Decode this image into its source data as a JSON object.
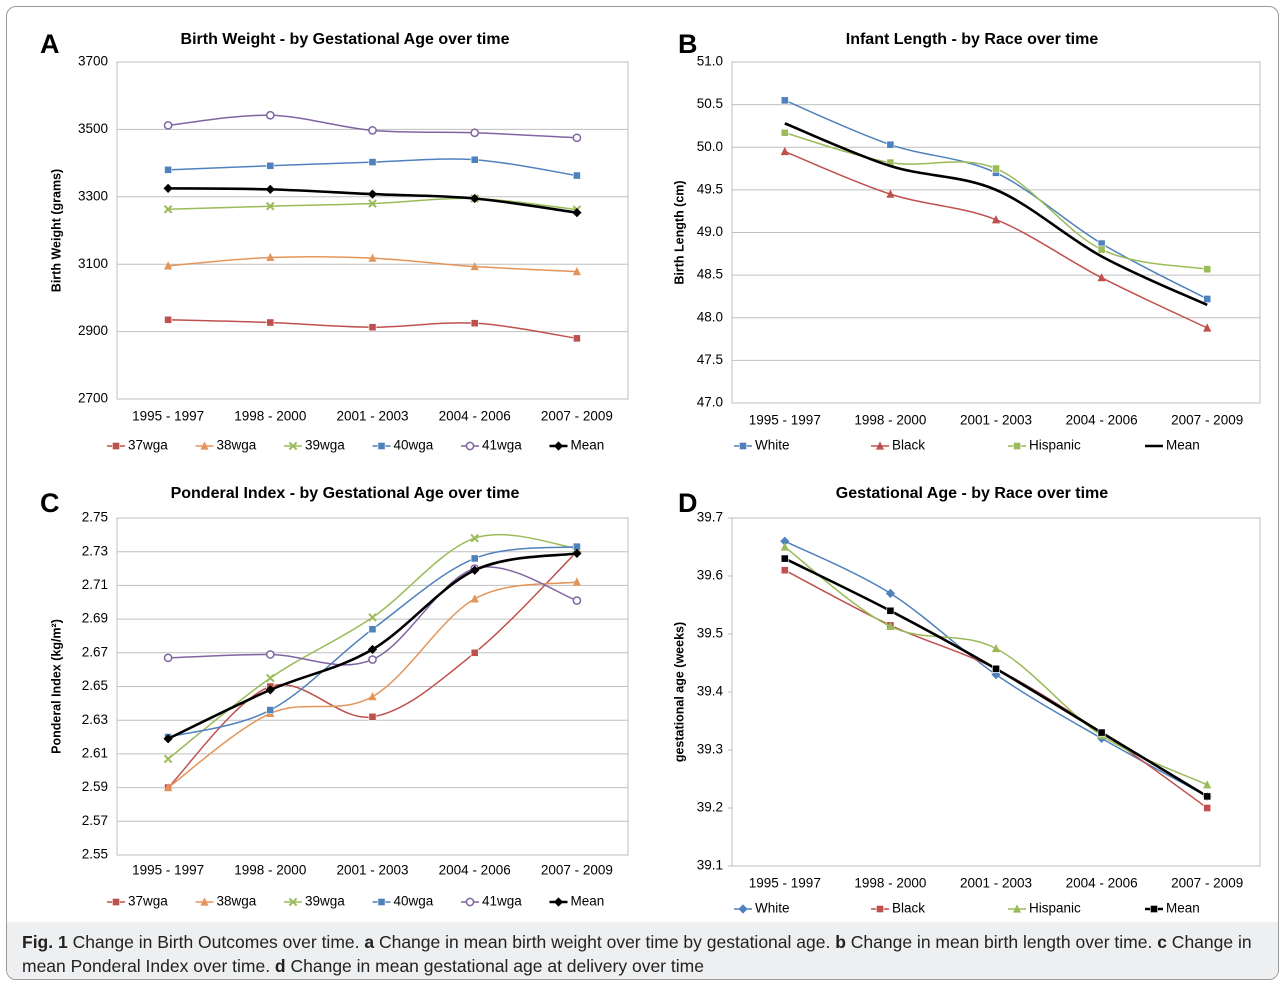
{
  "chart_data": [
    {
      "type": "line",
      "panel": "A",
      "title": "Birth Weight - by Gestational Age over time",
      "y_label": "Birth Weight (grams)",
      "categories": [
        "1995 - 1997",
        "1998 - 2000",
        "2001 - 2003",
        "2004 - 2006",
        "2007 - 2009"
      ],
      "ylim": [
        2700,
        3700
      ],
      "yticks": [
        2700,
        2900,
        3100,
        3300,
        3500,
        3700
      ],
      "grid": true,
      "smooth": true,
      "series": [
        {
          "name": "37wga",
          "color": "#c0504d",
          "marker": "square",
          "values": [
            2935,
            2927,
            2913,
            2925,
            2880
          ]
        },
        {
          "name": "38wga",
          "color": "#e3955a",
          "marker": "triangle",
          "values": [
            3095,
            3120,
            3118,
            3093,
            3078
          ]
        },
        {
          "name": "39wga",
          "color": "#9bbb59",
          "marker": "x",
          "values": [
            3263,
            3272,
            3280,
            3295,
            3262
          ]
        },
        {
          "name": "40wga",
          "color": "#4f81bd",
          "marker": "square",
          "values": [
            3380,
            3392,
            3403,
            3410,
            3363
          ]
        },
        {
          "name": "41wga",
          "color": "#8064a2",
          "marker": "circle",
          "values": [
            3512,
            3542,
            3497,
            3490,
            3475
          ]
        },
        {
          "name": "Mean",
          "color": "#000000",
          "marker": "diamond",
          "values": [
            3325,
            3322,
            3308,
            3295,
            3253
          ]
        }
      ]
    },
    {
      "type": "line",
      "panel": "B",
      "title": "Infant Length - by Race over time",
      "y_label": "Birth Length (cm)",
      "categories": [
        "1995 - 1997",
        "1998 - 2000",
        "2001 - 2003",
        "2004 - 2006",
        "2007 - 2009"
      ],
      "ylim": [
        47,
        51
      ],
      "yticks": [
        {
          "value": 47,
          "label": "47.0"
        },
        47.5,
        {
          "value": 48,
          "label": "48.0"
        },
        48.5,
        {
          "value": 49,
          "label": "49.0"
        },
        49.5,
        {
          "value": 50,
          "label": "50.0"
        },
        50.5,
        {
          "value": 51,
          "label": "51.0"
        }
      ],
      "grid": true,
      "smooth": true,
      "series": [
        {
          "name": "White",
          "color": "#4f81bd",
          "marker": "square",
          "values": [
            50.55,
            50.03,
            49.7,
            48.87,
            48.22
          ]
        },
        {
          "name": "Black",
          "color": "#c0504d",
          "marker": "triangle",
          "values": [
            49.95,
            49.45,
            49.15,
            48.47,
            47.88
          ]
        },
        {
          "name": "Hispanic",
          "color": "#9bbb59",
          "marker": "square",
          "values": [
            50.17,
            49.82,
            49.75,
            48.8,
            48.57
          ]
        },
        {
          "name": "Mean",
          "color": "#000000",
          "marker": "none",
          "values": [
            50.28,
            49.78,
            49.5,
            48.72,
            48.15
          ]
        }
      ]
    },
    {
      "type": "line",
      "panel": "C",
      "title": "Ponderal Index - by Gestational Age over time",
      "y_label": "Ponderal Index (kg/m²)",
      "categories": [
        "1995 - 1997",
        "1998 - 2000",
        "2001 - 2003",
        "2004 - 2006",
        "2007 - 2009"
      ],
      "ylim": [
        2.55,
        2.75
      ],
      "yticks": [
        2.55,
        2.57,
        2.59,
        2.61,
        2.63,
        2.65,
        2.67,
        2.69,
        2.71,
        2.73,
        2.75
      ],
      "grid": true,
      "smooth": true,
      "series": [
        {
          "name": "37wga",
          "color": "#c0504d",
          "marker": "square",
          "values": [
            2.59,
            2.65,
            2.632,
            2.67,
            2.73
          ]
        },
        {
          "name": "38wga",
          "color": "#e3955a",
          "marker": "triangle",
          "values": [
            2.59,
            2.634,
            2.644,
            2.702,
            2.712
          ]
        },
        {
          "name": "39wga",
          "color": "#9bbb59",
          "marker": "x",
          "values": [
            2.607,
            2.655,
            2.691,
            2.738,
            2.732
          ]
        },
        {
          "name": "40wga",
          "color": "#4f81bd",
          "marker": "square",
          "values": [
            2.62,
            2.636,
            2.684,
            2.726,
            2.733
          ]
        },
        {
          "name": "41wga",
          "color": "#8064a2",
          "marker": "circle",
          "values": [
            2.667,
            2.669,
            2.666,
            2.72,
            2.701
          ]
        },
        {
          "name": "Mean",
          "color": "#000000",
          "marker": "diamond",
          "values": [
            2.619,
            2.648,
            2.672,
            2.719,
            2.729
          ]
        }
      ]
    },
    {
      "type": "line",
      "panel": "D",
      "title": "Gestational Age - by Race over time",
      "y_label": "gestational age (weeks)",
      "categories": [
        "1995 - 1997",
        "1998 - 2000",
        "2001 - 2003",
        "2004 - 2006",
        "2007 - 2009"
      ],
      "ylim": [
        39.1,
        39.7
      ],
      "yticks": [
        39.1,
        39.2,
        39.3,
        39.4,
        39.5,
        39.6,
        39.7
      ],
      "grid": false,
      "smooth": true,
      "series": [
        {
          "name": "White",
          "color": "#4f81bd",
          "marker": "diamond",
          "values": [
            39.66,
            39.57,
            39.43,
            39.32,
            39.22
          ]
        },
        {
          "name": "Black",
          "color": "#c0504d",
          "marker": "square",
          "values": [
            39.61,
            39.515,
            39.44,
            39.33,
            39.2
          ]
        },
        {
          "name": "Hispanic",
          "color": "#9bbb59",
          "marker": "triangle",
          "values": [
            39.65,
            39.513,
            39.475,
            39.325,
            39.24
          ]
        },
        {
          "name": "Mean",
          "color": "#000000",
          "marker": "square",
          "values": [
            39.63,
            39.54,
            39.44,
            39.33,
            39.22
          ]
        }
      ]
    }
  ],
  "caption": [
    {
      "text": "Fig. 1",
      "bold": true
    },
    {
      "text": " Change in Birth Outcomes over time. ",
      "bold": false
    },
    {
      "text": "a",
      "bold": true
    },
    {
      "text": " Change in mean birth weight over time by gestational age. ",
      "bold": false
    },
    {
      "text": "b",
      "bold": true
    },
    {
      "text": " Change in mean birth length over time. ",
      "bold": false
    },
    {
      "text": "c",
      "bold": true
    },
    {
      "text": " Change in mean Ponderal Index over time. ",
      "bold": false
    },
    {
      "text": "d",
      "bold": true
    },
    {
      "text": " Change in mean gestational age at delivery over time",
      "bold": false
    }
  ]
}
